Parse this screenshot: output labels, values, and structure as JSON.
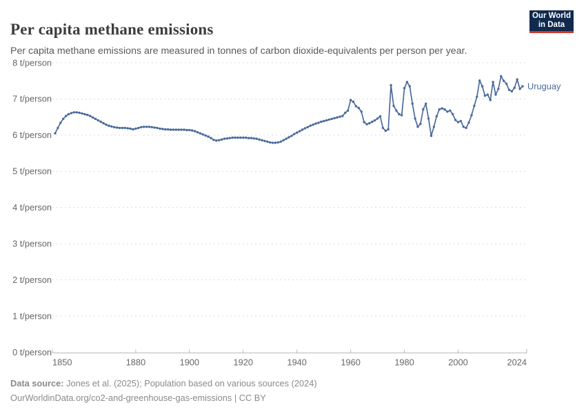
{
  "header": {
    "title": "Per capita methane emissions",
    "subtitle": "Per capita methane emissions are measured in tonnes of carbon dioxide-equivalents per person per year.",
    "logo": {
      "line1": "Our World",
      "line2": "in Data"
    }
  },
  "chart_data": {
    "type": "line",
    "title": "Per capita methane emissions",
    "xlabel": "",
    "ylabel": "",
    "xlim": [
      1850,
      2024
    ],
    "ylim": [
      0,
      8
    ],
    "grid": "horizontal-dashed",
    "legend_position": "end-of-line-label",
    "x_ticks": [
      1850,
      1880,
      1900,
      1920,
      1940,
      1960,
      1980,
      2000,
      2024
    ],
    "x_tick_labels": [
      "1850",
      "1880",
      "1900",
      "1920",
      "1940",
      "1960",
      "1980",
      "2000",
      "2024"
    ],
    "y_ticks": [
      0,
      1,
      2,
      3,
      4,
      5,
      6,
      7,
      8
    ],
    "y_tick_labels": [
      "0 t/person",
      "1 t/person",
      "2 t/person",
      "3 t/person",
      "4 t/person",
      "5 t/person",
      "6 t/person",
      "7 t/person",
      "8 t/person"
    ],
    "x_start": 1850,
    "x_step": 1,
    "series": [
      {
        "name": "Uruguay",
        "color": "#4C6A9C",
        "values": [
          6.05,
          6.2,
          6.34,
          6.45,
          6.53,
          6.58,
          6.61,
          6.63,
          6.63,
          6.62,
          6.6,
          6.58,
          6.56,
          6.53,
          6.49,
          6.45,
          6.41,
          6.37,
          6.33,
          6.29,
          6.26,
          6.24,
          6.22,
          6.21,
          6.2,
          6.2,
          6.2,
          6.19,
          6.18,
          6.16,
          6.18,
          6.2,
          6.22,
          6.23,
          6.23,
          6.23,
          6.22,
          6.21,
          6.2,
          6.18,
          6.17,
          6.16,
          6.16,
          6.15,
          6.15,
          6.15,
          6.15,
          6.15,
          6.15,
          6.14,
          6.14,
          6.13,
          6.11,
          6.08,
          6.05,
          6.02,
          5.99,
          5.96,
          5.92,
          5.87,
          5.85,
          5.86,
          5.88,
          5.9,
          5.91,
          5.92,
          5.93,
          5.93,
          5.93,
          5.93,
          5.93,
          5.93,
          5.92,
          5.92,
          5.91,
          5.9,
          5.88,
          5.86,
          5.84,
          5.82,
          5.8,
          5.79,
          5.79,
          5.8,
          5.82,
          5.86,
          5.9,
          5.94,
          5.98,
          6.03,
          6.07,
          6.11,
          6.15,
          6.19,
          6.22,
          6.26,
          6.29,
          6.32,
          6.34,
          6.37,
          6.39,
          6.41,
          6.43,
          6.45,
          6.47,
          6.49,
          6.51,
          6.53,
          6.62,
          6.68,
          6.97,
          6.92,
          6.8,
          6.75,
          6.65,
          6.36,
          6.3,
          6.33,
          6.37,
          6.41,
          6.46,
          6.52,
          6.2,
          6.12,
          6.16,
          7.38,
          6.81,
          6.68,
          6.58,
          6.55,
          7.3,
          7.47,
          7.35,
          6.87,
          6.46,
          6.23,
          6.31,
          6.71,
          6.87,
          6.46,
          5.98,
          6.23,
          6.52,
          6.71,
          6.74,
          6.71,
          6.65,
          6.68,
          6.58,
          6.42,
          6.36,
          6.39,
          6.23,
          6.2,
          6.35,
          6.55,
          6.81,
          7.06,
          7.51,
          7.35,
          7.09,
          7.12,
          6.97,
          7.47,
          7.12,
          7.28,
          7.63,
          7.5,
          7.42,
          7.25,
          7.21,
          7.31,
          7.54,
          7.28,
          7.35
        ]
      }
    ]
  },
  "footer": {
    "source_label": "Data source:",
    "source_text": " Jones et al. (2025); Population based on various sources (2024)",
    "citation": "OurWorldinData.org/co2-and-greenhouse-gas-emissions | CC BY"
  },
  "colors": {
    "line": "#4C6A9C",
    "logo_bg": "#102a4e",
    "logo_accent": "#d3382e",
    "grid": "#dcdcdc",
    "axis": "#b9b9b9",
    "tick_text": "#666666"
  }
}
